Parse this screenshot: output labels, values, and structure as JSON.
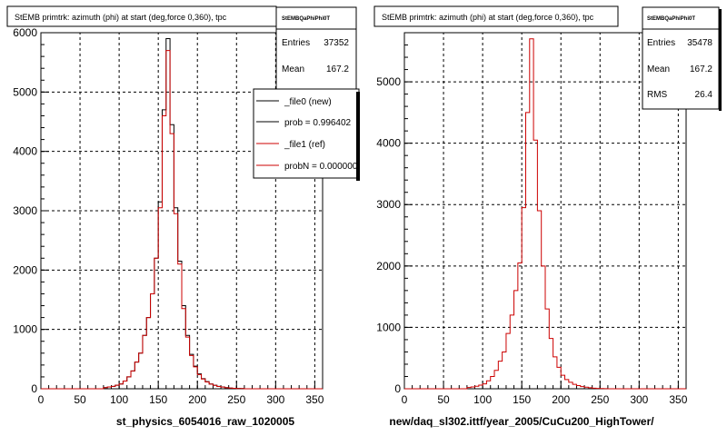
{
  "chart_data": [
    {
      "type": "histogram",
      "title": "StEMB primtrk: azimuth (phi) at start (deg,force 0,360), tpc",
      "xlabel": "st_physics_6054016_raw_1020005",
      "xlim": [
        0,
        360
      ],
      "ylim": [
        0,
        6000
      ],
      "xticks": [
        0,
        50,
        100,
        150,
        200,
        250,
        300,
        350
      ],
      "yticks": [
        0,
        1000,
        2000,
        3000,
        4000,
        5000,
        6000
      ],
      "grid": true,
      "bin_width": 5,
      "x_start": 0,
      "series": [
        {
          "name": "_file0 (new)",
          "color": "#000000",
          "values": [
            0,
            0,
            0,
            0,
            0,
            0,
            0,
            0,
            0,
            0,
            0,
            0,
            0,
            0,
            0,
            0,
            20,
            30,
            40,
            60,
            80,
            130,
            200,
            300,
            450,
            600,
            900,
            1200,
            1600,
            2200,
            3150,
            4700,
            5900,
            4450,
            3050,
            2150,
            1400,
            900,
            580,
            380,
            250,
            170,
            120,
            80,
            60,
            40,
            30,
            20,
            12,
            8,
            5,
            3,
            0,
            0,
            0,
            0,
            0,
            0,
            0,
            0,
            0,
            0,
            0,
            0,
            0,
            0,
            0,
            0,
            0,
            0,
            0,
            0
          ]
        },
        {
          "name": "_file1 (ref)",
          "color": "#cc0000",
          "values": [
            0,
            0,
            0,
            0,
            0,
            0,
            0,
            0,
            0,
            0,
            0,
            0,
            0,
            0,
            0,
            0,
            20,
            30,
            40,
            60,
            80,
            130,
            200,
            300,
            450,
            600,
            900,
            1200,
            1600,
            2200,
            3050,
            4600,
            5700,
            4300,
            2950,
            2100,
            1350,
            870,
            560,
            370,
            240,
            165,
            115,
            78,
            58,
            38,
            28,
            18,
            11,
            7,
            4,
            3,
            0,
            0,
            0,
            0,
            0,
            0,
            0,
            0,
            0,
            0,
            0,
            0,
            0,
            0,
            0,
            0,
            0,
            0,
            0,
            0
          ]
        }
      ],
      "stats_box": {
        "name": "StEMBQaPhiPhi0T",
        "entries_label": "Entries",
        "entries": "37352",
        "mean_label": "Mean",
        "mean": "167.2"
      },
      "legend": {
        "placement": "top-right",
        "entries": [
          {
            "text": "_file0 (new)",
            "color": "#000000"
          },
          {
            "text": "prob = 0.996402",
            "color": "#000000"
          },
          {
            "text": "_file1 (ref)",
            "color": "#cc0000"
          },
          {
            "text": "probN = 0.000000",
            "color": "#cc0000"
          }
        ]
      }
    },
    {
      "type": "histogram",
      "title": "StEMB primtrk: azimuth (phi) at start (deg,force 0,360), tpc",
      "xlabel": "new/daq_sl302.ittf/year_2005/CuCu200_HighTower/",
      "xlim": [
        0,
        360
      ],
      "ylim": [
        0,
        5800
      ],
      "xticks": [
        0,
        50,
        100,
        150,
        200,
        250,
        300,
        350
      ],
      "yticks": [
        0,
        1000,
        2000,
        3000,
        4000,
        5000
      ],
      "grid": true,
      "bin_width": 5,
      "x_start": 0,
      "series": [
        {
          "name": "",
          "color": "#cc0000",
          "values": [
            0,
            0,
            0,
            0,
            0,
            0,
            0,
            0,
            0,
            0,
            0,
            0,
            0,
            0,
            0,
            0,
            20,
            30,
            40,
            60,
            80,
            130,
            200,
            300,
            450,
            600,
            900,
            1200,
            1600,
            2050,
            2950,
            4500,
            5700,
            4050,
            2900,
            2000,
            1300,
            820,
            520,
            350,
            220,
            150,
            105,
            72,
            52,
            35,
            25,
            16,
            10,
            6,
            4,
            2,
            0,
            0,
            0,
            0,
            0,
            0,
            0,
            0,
            0,
            0,
            0,
            0,
            0,
            0,
            0,
            0,
            0,
            0,
            0,
            0
          ]
        }
      ],
      "stats_box": {
        "name": "StEMBQaPhiPhi0T",
        "entries_label": "Entries",
        "entries": "35478",
        "mean_label": "Mean",
        "mean": "167.2",
        "rms_label": "RMS",
        "rms": "26.4"
      }
    }
  ]
}
